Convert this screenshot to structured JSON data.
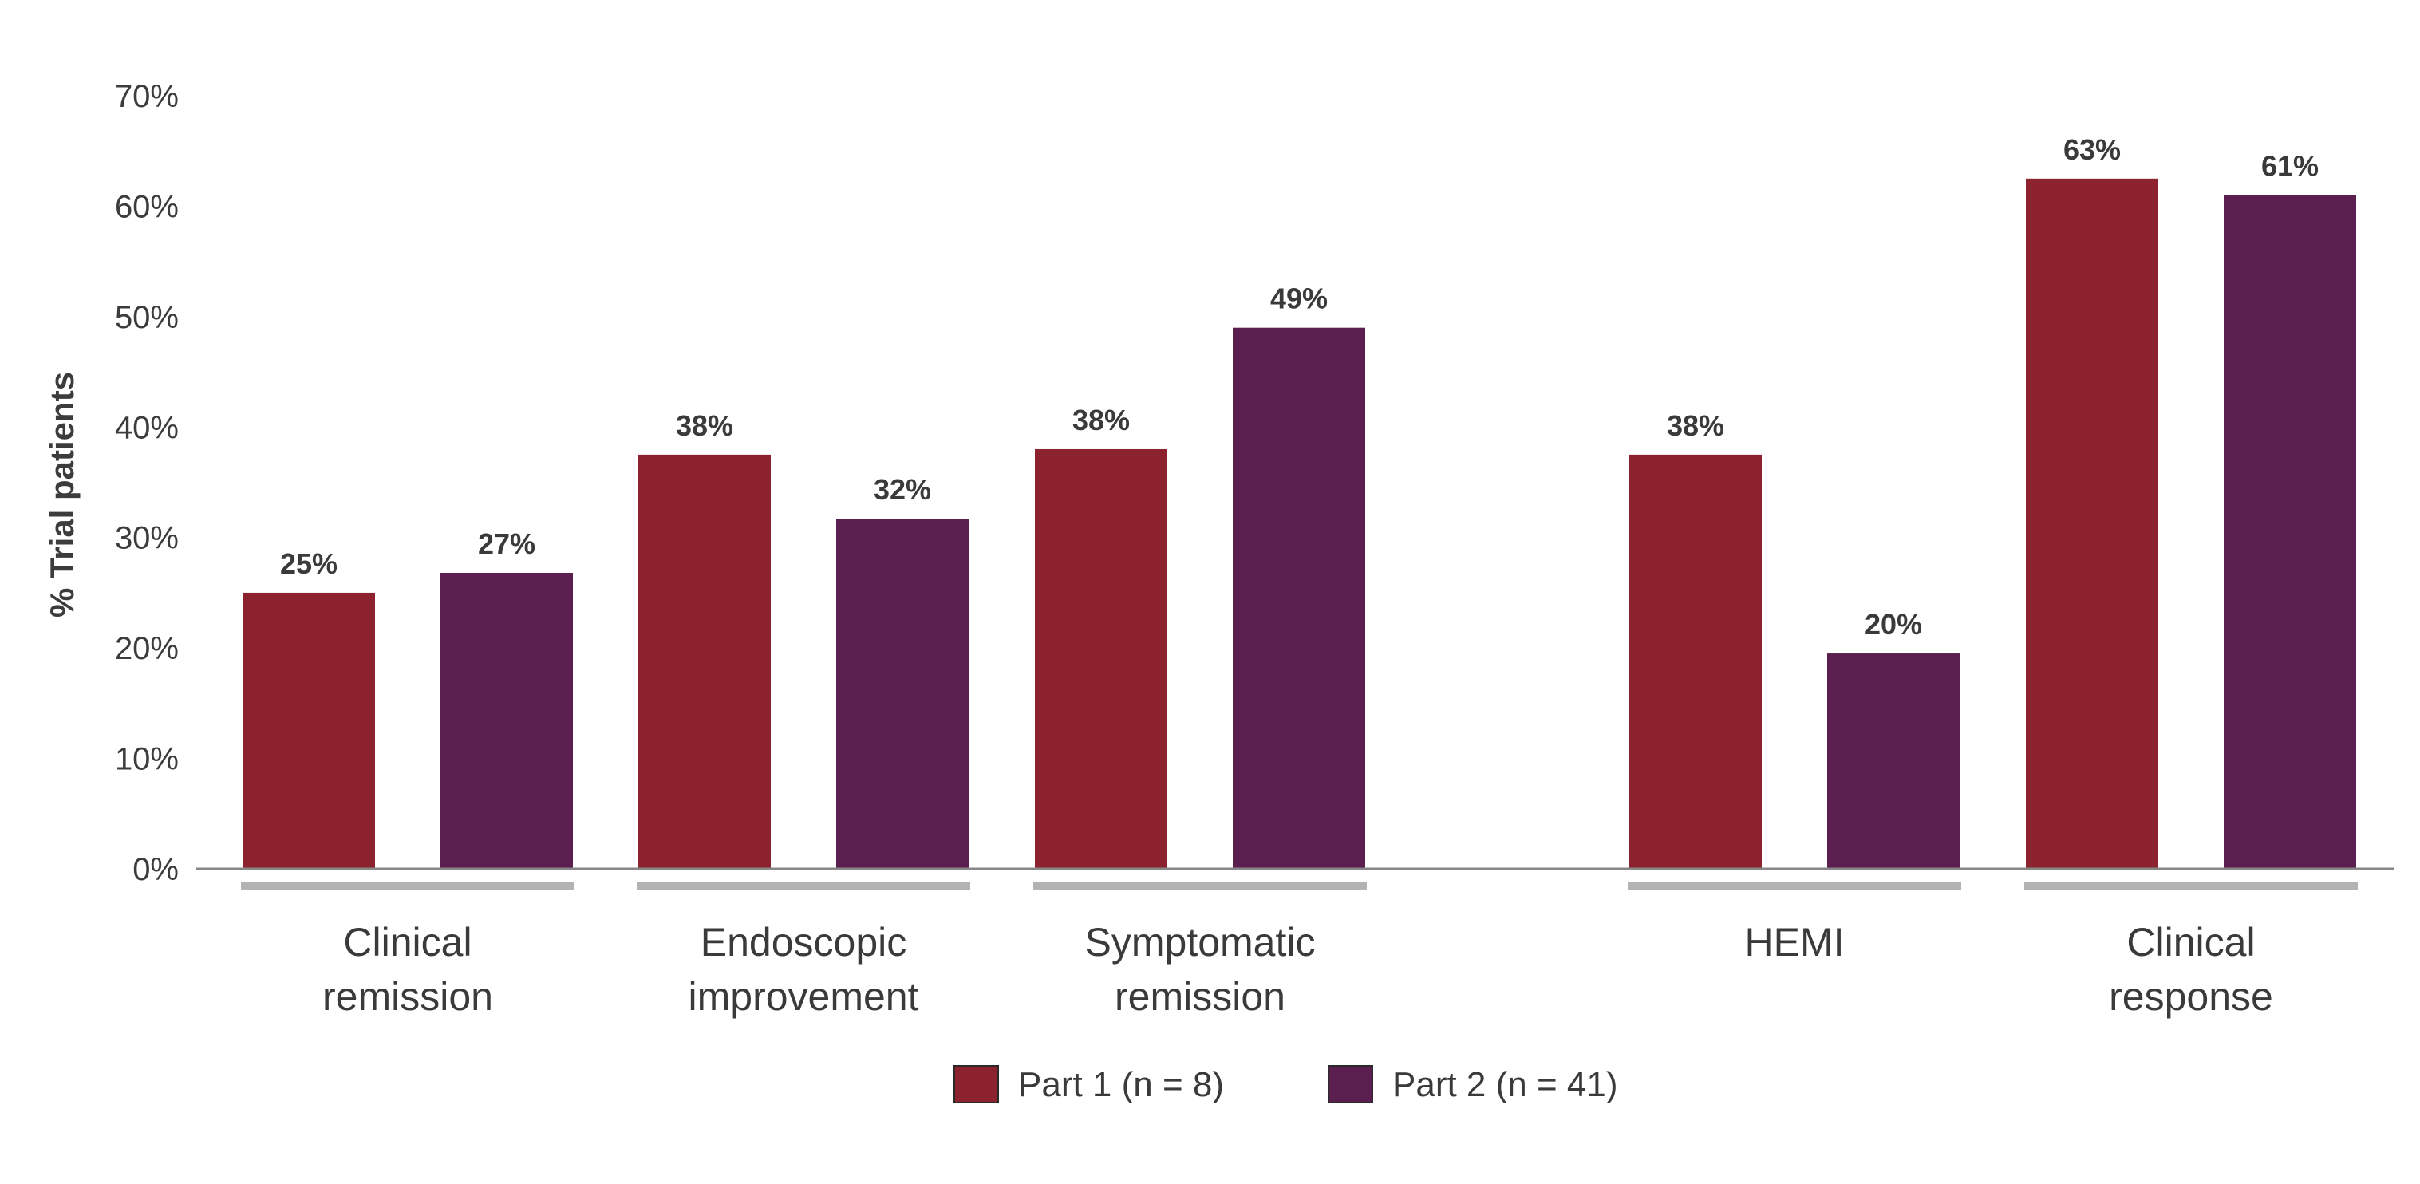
{
  "chart_data": {
    "type": "bar",
    "title": "",
    "xlabel": "",
    "ylabel": "% Trial patients",
    "ylim": [
      0,
      70
    ],
    "y_ticks": [
      "0%",
      "10%",
      "20%",
      "30%",
      "40%",
      "50%",
      "60%",
      "70%"
    ],
    "y_tick_values": [
      0,
      10,
      20,
      30,
      40,
      50,
      60,
      70
    ],
    "grid": false,
    "legend_position": "bottom-center",
    "categories": [
      [
        "Clinical",
        "remission"
      ],
      [
        "Endoscopic",
        "improvement"
      ],
      [
        "Symptomatic",
        "remission"
      ],
      [
        "HEMI"
      ],
      [
        "Clinical",
        "response"
      ]
    ],
    "category_gap_after": [
      false,
      false,
      true,
      false,
      false
    ],
    "series": [
      {
        "name": "Part 1 (n = 8)",
        "color": "#8b222d",
        "values": [
          25,
          37.5,
          38,
          37.5,
          62.5
        ],
        "labels": [
          "25%",
          "38%",
          "38%",
          "38%",
          "63%"
        ]
      },
      {
        "name": "Part 2 (n = 41)",
        "color": "#5a1f4e",
        "values": [
          26.8,
          31.7,
          49,
          19.5,
          61
        ],
        "labels": [
          "27%",
          "32%",
          "49%",
          "20%",
          "61%"
        ]
      }
    ],
    "colors": {
      "axis": "#888888",
      "group_underline": "#b3b3b3",
      "text": "#3a3a3a"
    }
  }
}
